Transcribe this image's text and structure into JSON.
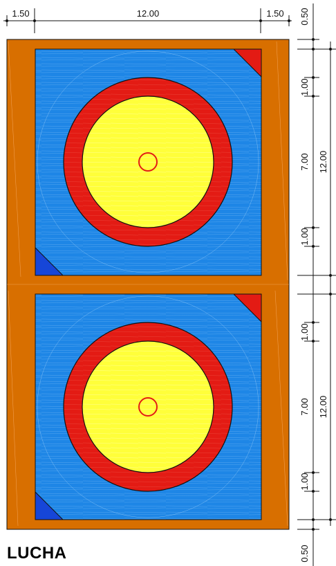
{
  "title": "LUCHA",
  "dimensions": {
    "top_left": "1.50",
    "top_center": "12.00",
    "top_right": "1.50",
    "top_margin": "0.50",
    "bottom_margin": "0.50",
    "mat1_outer": "12.00",
    "mat1_inner": "7.00",
    "mat1_band_top": "1.00",
    "mat1_band_bottom": "1.00",
    "mat2_outer": "12.00",
    "mat2_inner": "7.00",
    "mat2_band_top": "1.00",
    "mat2_band_bottom": "1.00"
  },
  "colors": {
    "frame": "#d86f00",
    "mat": "#1e86e6",
    "ring": "#e31b14",
    "center": "#ffff3a",
    "corner_red": "#e31b14",
    "corner_blue": "#1646d8",
    "line": "#111111"
  }
}
